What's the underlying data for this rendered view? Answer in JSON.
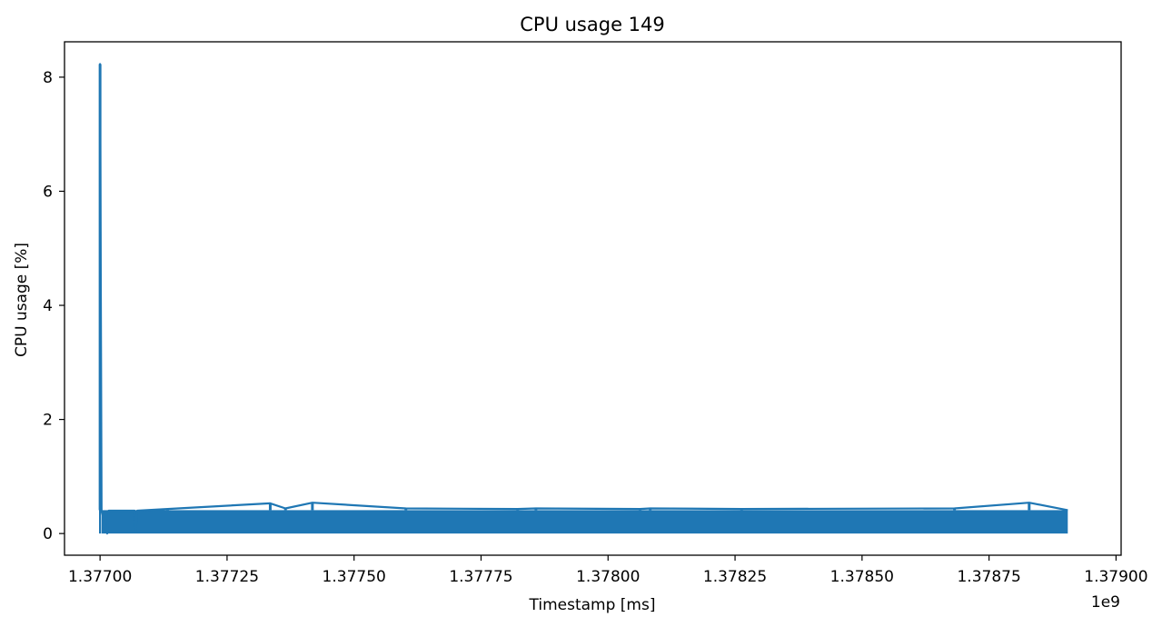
{
  "chart_data": {
    "type": "line",
    "title": "CPU usage 149",
    "xlabel": "Timestamp [ms]",
    "ylabel": "CPU usage [%]",
    "x_offset_label": "1e9",
    "xlim": [
      1.37693,
      1.37901
    ],
    "ylim": [
      -0.38,
      8.62
    ],
    "x_ticks": [
      1.377,
      1.37725,
      1.3775,
      1.37775,
      1.378,
      1.37825,
      1.3785,
      1.37875,
      1.379
    ],
    "x_tick_labels": [
      "1.37700",
      "1.37725",
      "1.37750",
      "1.37775",
      "1.37800",
      "1.37825",
      "1.37850",
      "1.37875",
      "1.37900"
    ],
    "y_ticks": [
      0,
      2,
      4,
      6,
      8
    ],
    "y_tick_labels": [
      "0",
      "2",
      "4",
      "6",
      "8"
    ],
    "grid": false,
    "line_color": "#1f77b4",
    "series": [
      {
        "x_range": [
          1.377,
          1.378905
        ],
        "band": {
          "low": 0.0,
          "high": 0.41
        },
        "points": [
          {
            "x": 1.377,
            "y": 0.0
          },
          {
            "x": 1.377,
            "y": 8.23
          },
          {
            "x": 1.377003,
            "y": 0.4
          },
          {
            "x": 1.377014,
            "y": 0.0
          },
          {
            "x": 1.377017,
            "y": 0.4
          },
          {
            "x": 1.377068,
            "y": 0.4
          },
          {
            "x": 1.37707,
            "y": 0.03
          },
          {
            "x": 1.377073,
            "y": 0.4
          },
          {
            "x": 1.377133,
            "y": 0.43
          },
          {
            "x": 1.377335,
            "y": 0.53
          },
          {
            "x": 1.377365,
            "y": 0.44
          },
          {
            "x": 1.377418,
            "y": 0.54
          },
          {
            "x": 1.377602,
            "y": 0.44
          },
          {
            "x": 1.377822,
            "y": 0.43
          },
          {
            "x": 1.377858,
            "y": 0.44
          },
          {
            "x": 1.378063,
            "y": 0.43
          },
          {
            "x": 1.378083,
            "y": 0.44
          },
          {
            "x": 1.378263,
            "y": 0.43
          },
          {
            "x": 1.378682,
            "y": 0.44
          },
          {
            "x": 1.378829,
            "y": 0.54
          },
          {
            "x": 1.378905,
            "y": 0.41
          }
        ]
      }
    ]
  }
}
